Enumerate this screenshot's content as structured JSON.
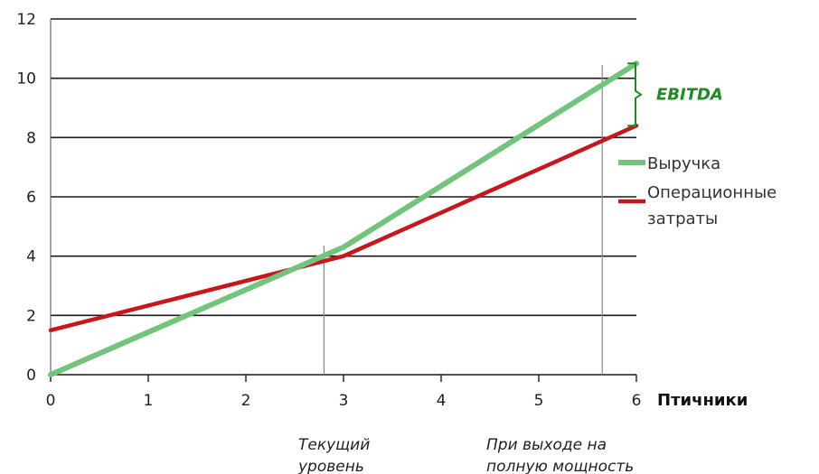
{
  "chart_data": {
    "type": "line",
    "x": [
      0,
      1,
      2,
      3,
      4,
      5,
      6
    ],
    "xlabel": "Птичники",
    "ylabel": "",
    "xlim": [
      0,
      6
    ],
    "ylim": [
      0,
      12
    ],
    "x_ticks": [
      "0",
      "1",
      "2",
      "3",
      "4",
      "5",
      "6"
    ],
    "y_ticks": [
      "0",
      "2",
      "4",
      "6",
      "8",
      "10",
      "12"
    ],
    "grid": "horizontal",
    "legend_position": "right",
    "series": [
      {
        "name": "Выручка",
        "color": "#72c47c",
        "points": [
          [
            0,
            0
          ],
          [
            3,
            4.3
          ],
          [
            6,
            10.5
          ]
        ]
      },
      {
        "name_lines": [
          "Операционные",
          "затраты"
        ],
        "color": "#c8171c",
        "points": [
          [
            0,
            1.5
          ],
          [
            3,
            4.0
          ],
          [
            6,
            8.4
          ]
        ]
      }
    ],
    "markers": [
      {
        "x": 2.8,
        "label_lines": [
          "Текущий",
          "уровень"
        ]
      },
      {
        "x": 5.65,
        "label_lines": [
          "При выходе на",
          "полную мощность"
        ]
      }
    ],
    "bracket": {
      "x": 6,
      "y_from": 8.4,
      "y_to": 10.5,
      "label": "EBITDA",
      "color": "#1e8c23"
    }
  }
}
